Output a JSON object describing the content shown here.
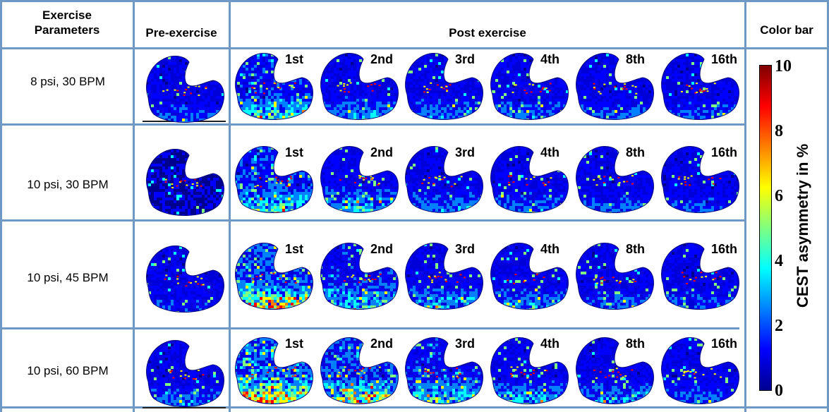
{
  "headers": {
    "exercise_parameters": "Exercise Parameters",
    "pre_exercise": "Pre-exercise",
    "post_exercise": "Post exercise",
    "color_bar": "Color bar"
  },
  "rows": [
    {
      "label": "8 psi, 30 BPM",
      "timepoints": [
        "1st",
        "2nd",
        "3rd",
        "4th",
        "8th",
        "16th"
      ],
      "pre_intensity": 0.25,
      "post_intensity": [
        0.55,
        0.35,
        0.3,
        0.28,
        0.27,
        0.25
      ]
    },
    {
      "label": "10 psi, 30 BPM",
      "timepoints": [
        "1st",
        "2nd",
        "3rd",
        "4th",
        "8th",
        "16th"
      ],
      "pre_intensity": 0.08,
      "post_intensity": [
        0.62,
        0.45,
        0.32,
        0.28,
        0.26,
        0.22
      ]
    },
    {
      "label": "10 psi, 45 BPM",
      "timepoints": [
        "1st",
        "2nd",
        "3rd",
        "4th",
        "8th",
        "16th"
      ],
      "pre_intensity": 0.2,
      "post_intensity": [
        0.9,
        0.55,
        0.4,
        0.35,
        0.28,
        0.24
      ]
    },
    {
      "label": "10 psi, 60 BPM",
      "timepoints": [
        "1st",
        "2nd",
        "3rd",
        "4th",
        "8th",
        "16th"
      ],
      "pre_intensity": 0.3,
      "post_intensity": [
        1.0,
        0.8,
        0.55,
        0.42,
        0.35,
        0.3
      ]
    }
  ],
  "colorbar": {
    "title": "CEST asymmetry in %",
    "ticks": [
      "10",
      "8",
      "6",
      "4",
      "2",
      "0"
    ],
    "min": 0,
    "max": 10,
    "colors": [
      "#00008f",
      "#0000ff",
      "#0080ff",
      "#00ffff",
      "#80ff80",
      "#ffff00",
      "#ff8000",
      "#ff0000",
      "#800000"
    ]
  }
}
